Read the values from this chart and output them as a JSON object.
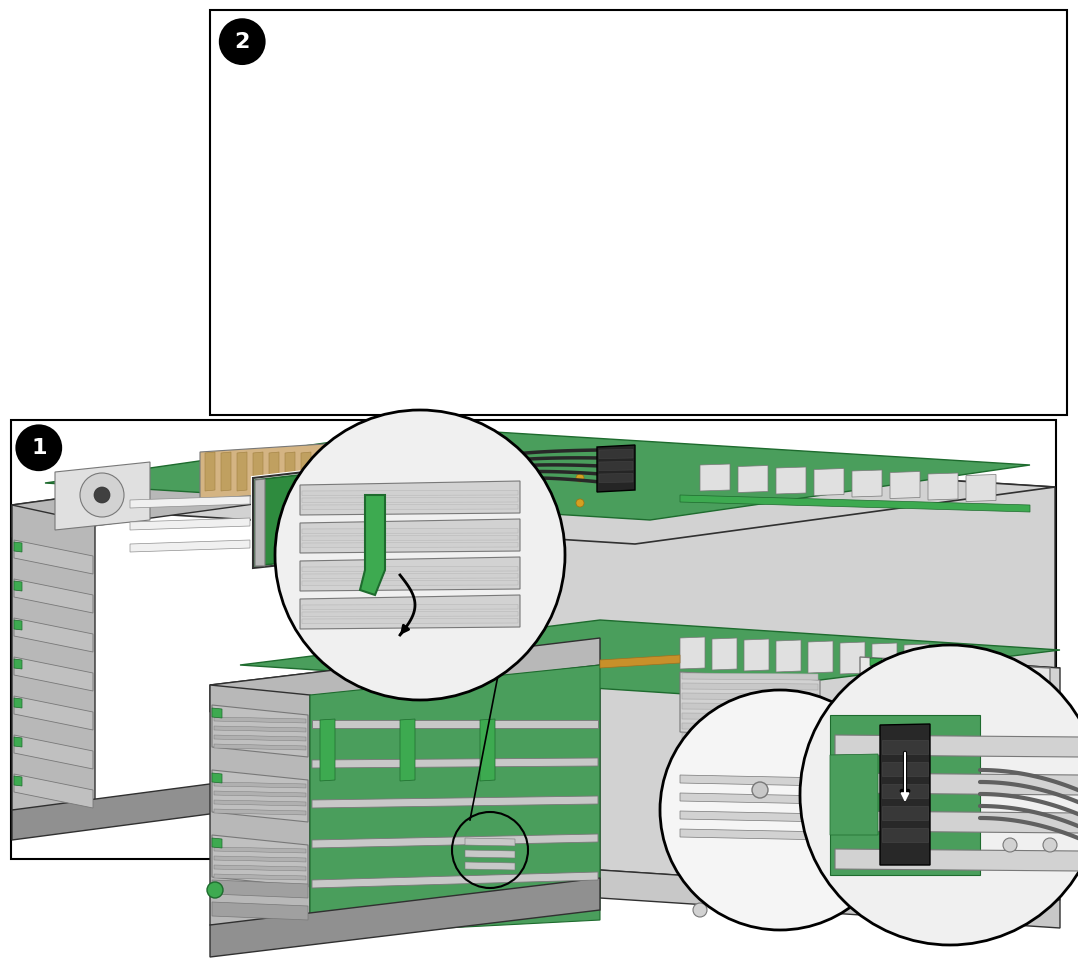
{
  "background_color": "#ffffff",
  "fig_width": 10.78,
  "fig_height": 9.65,
  "dpi": 100,
  "panel1": {
    "label": "1",
    "border": [
      0.01,
      0.435,
      0.97,
      0.455
    ],
    "bg": "#ffffff"
  },
  "panel2": {
    "label": "2",
    "border": [
      0.195,
      0.01,
      0.795,
      0.42
    ],
    "bg": "#ffffff"
  },
  "colors": {
    "pcb_green": "#4a9e5c",
    "dark_green": "#1e6b2e",
    "chassis_gray": "#d2d2d2",
    "chassis_side": "#b8b8b8",
    "chassis_dark": "#909090",
    "drive_gray": "#c0c0c0",
    "dark_metal": "#787878",
    "very_dark": "#404040",
    "outline": "#303030",
    "white": "#ffffff",
    "off_white": "#f0f0f0",
    "light_gray": "#e0e0e0",
    "cable_dark": "#282828",
    "connector_black": "#1a1a1a",
    "green_accent": "#3daa50",
    "hba_green": "#2e8b3e",
    "copper": "#c8902a",
    "black": "#000000",
    "silver": "#c8c8c8",
    "tan": "#d4b483",
    "blue_tint": "#7ab8d0"
  }
}
